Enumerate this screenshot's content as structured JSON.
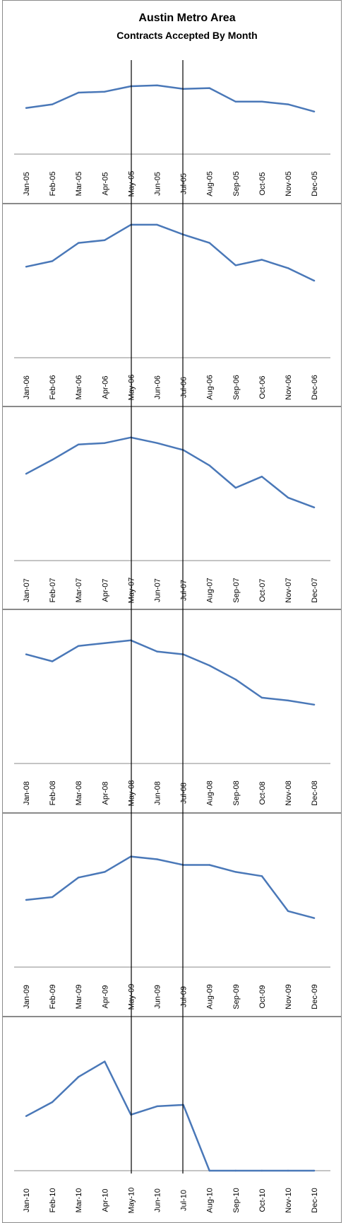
{
  "chart_data": {
    "type": "line",
    "title": "Austin Metro Area",
    "subtitle": "Contracts Accepted By Month",
    "xlabel": "",
    "ylabel": "",
    "y_axis_shown": false,
    "grid": false,
    "legend": "none",
    "line_color": "#4a78b8",
    "marker_line_color": "#000000",
    "marker_lines_at": [
      "May",
      "Jul"
    ],
    "panels": [
      {
        "year": "2005",
        "categories": [
          "Jan-05",
          "Feb-05",
          "Mar-05",
          "Apr-05",
          "May-05",
          "Jun-05",
          "Jul-05",
          "Aug-05",
          "Sep-05",
          "Oct-05",
          "Nov-05",
          "Dec-05"
        ],
        "values": [
          0.51,
          0.55,
          0.68,
          0.69,
          0.75,
          0.76,
          0.72,
          0.73,
          0.58,
          0.58,
          0.55,
          0.47
        ]
      },
      {
        "year": "2006",
        "categories": [
          "Jan-06",
          "Feb-06",
          "Mar-06",
          "Apr-06",
          "May-06",
          "Jun-06",
          "Jul-06",
          "Aug-06",
          "Sep-06",
          "Oct-06",
          "Nov-06",
          "Dec-06"
        ],
        "values": [
          0.65,
          0.69,
          0.82,
          0.84,
          0.95,
          0.95,
          0.88,
          0.82,
          0.66,
          0.7,
          0.64,
          0.55
        ]
      },
      {
        "year": "2007",
        "categories": [
          "Jan-07",
          "Feb-07",
          "Mar-07",
          "Apr-07",
          "May-07",
          "Jun-07",
          "Jul-07",
          "Aug-07",
          "Sep-07",
          "Oct-07",
          "Nov-07",
          "Dec-07"
        ],
        "values": [
          0.62,
          0.72,
          0.83,
          0.84,
          0.88,
          0.84,
          0.79,
          0.68,
          0.52,
          0.6,
          0.45,
          0.38
        ]
      },
      {
        "year": "2008",
        "categories": [
          "Jan-08",
          "Feb-08",
          "Mar-08",
          "Apr-08",
          "May-08",
          "Jun-08",
          "Jul-08",
          "Aug-08",
          "Sep-08",
          "Oct-08",
          "Nov-08",
          "Dec-08"
        ],
        "values": [
          0.78,
          0.73,
          0.84,
          0.86,
          0.88,
          0.8,
          0.78,
          0.7,
          0.6,
          0.47,
          0.45,
          0.42
        ]
      },
      {
        "year": "2009",
        "categories": [
          "Jan-09",
          "Feb-09",
          "Mar-09",
          "Apr-09",
          "May-09",
          "Jun-09",
          "Jul-09",
          "Aug-09",
          "Sep-09",
          "Oct-09",
          "Nov-09",
          "Dec-09"
        ],
        "values": [
          0.48,
          0.5,
          0.64,
          0.68,
          0.79,
          0.77,
          0.73,
          0.73,
          0.68,
          0.65,
          0.4,
          0.35
        ]
      },
      {
        "year": "2010",
        "categories": [
          "Jan-10",
          "Feb-10",
          "Mar-10",
          "Apr-10",
          "May-10",
          "Jun-10",
          "Jul-10",
          "Aug-10",
          "Sep-10",
          "Oct-10",
          "Nov-10",
          "Dec-10"
        ],
        "values": [
          0.39,
          0.49,
          0.67,
          0.78,
          0.4,
          0.46,
          0.47,
          0.0,
          0.0,
          0.0,
          0.0,
          0.0
        ]
      }
    ]
  }
}
